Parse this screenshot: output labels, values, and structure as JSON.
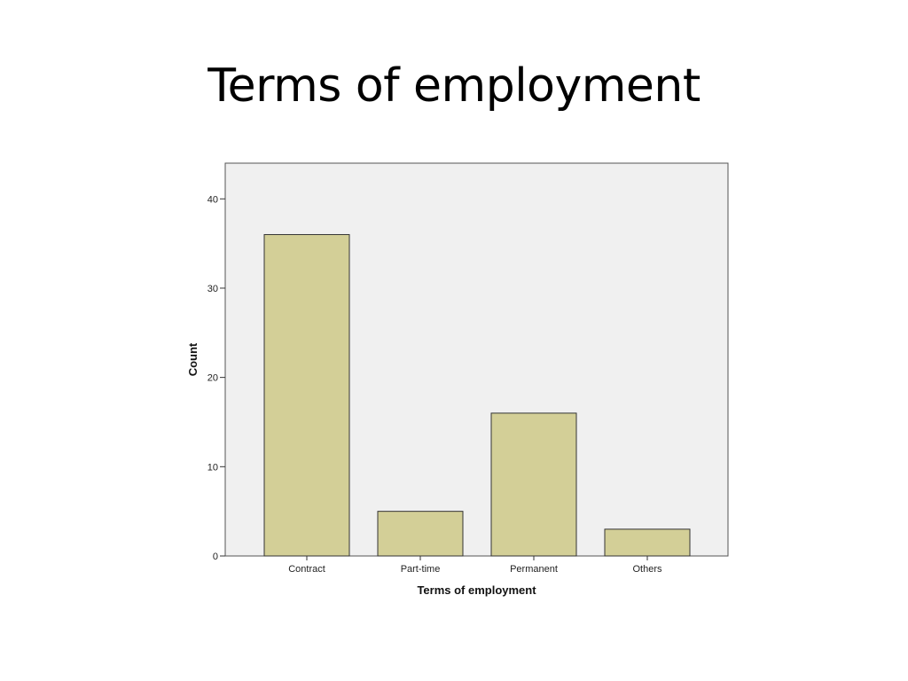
{
  "slide": {
    "title": "Terms of employment"
  },
  "chart_data": {
    "type": "bar",
    "categories": [
      "Contract",
      "Part-time",
      "Permanent",
      "Others"
    ],
    "values": [
      36,
      5,
      16,
      3
    ],
    "title": "",
    "xlabel": "Terms of employment",
    "ylabel": "Count",
    "ylim": [
      0,
      44
    ],
    "yticks": [
      0,
      10,
      20,
      30,
      40
    ],
    "grid": false,
    "colors": {
      "bar_fill": "#d3cf97",
      "bar_stroke": "#333333",
      "plot_background": "#f0f0f0",
      "frame": "#555555"
    }
  }
}
